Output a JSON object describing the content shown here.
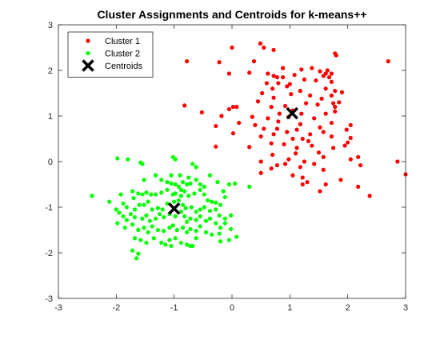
{
  "figure": {
    "title": "Cluster Assignments and Centroids for k-means++"
  },
  "chart_data": {
    "type": "scatter",
    "title": "Cluster Assignments and Centroids for k-means++",
    "xlabel": "",
    "ylabel": "",
    "xlim": [
      -3,
      3
    ],
    "ylim": [
      -3,
      3
    ],
    "xticks": [
      -3,
      -2,
      -1,
      0,
      1,
      2,
      3
    ],
    "yticks": [
      -3,
      -2,
      -1,
      0,
      1,
      2,
      3
    ],
    "grid": false,
    "box": true,
    "legend_position": "top-left",
    "series": [
      {
        "name": "Cluster 1",
        "color": "#ff0000",
        "marker": "dot",
        "points": [
          [
            0.49,
            2.59
          ],
          [
            0.55,
            2.5
          ],
          [
            0.72,
            2.45
          ],
          [
            1.78,
            2.37
          ],
          [
            1.8,
            2.33
          ],
          [
            2.7,
            2.2
          ],
          [
            -0.78,
            2.2
          ],
          [
            -0.22,
            2.18
          ],
          [
            0.38,
            2.2
          ],
          [
            0.0,
            2.5
          ],
          [
            0.88,
            2.05
          ],
          [
            1.2,
            2.02
          ],
          [
            1.38,
            2.05
          ],
          [
            1.65,
            2.0
          ],
          [
            1.52,
            1.98
          ],
          [
            1.62,
            1.93
          ],
          [
            1.72,
            1.93
          ],
          [
            1.58,
            1.88
          ],
          [
            0.3,
            1.95
          ],
          [
            0.62,
            1.93
          ],
          [
            0.72,
            1.88
          ],
          [
            0.78,
            1.85
          ],
          [
            0.88,
            1.85
          ],
          [
            1.08,
            1.9
          ],
          [
            1.25,
            1.8
          ],
          [
            1.45,
            1.78
          ],
          [
            1.68,
            1.85
          ],
          [
            -0.05,
            1.93
          ],
          [
            0.6,
            1.72
          ],
          [
            0.8,
            1.72
          ],
          [
            1.0,
            1.7
          ],
          [
            1.72,
            1.75
          ],
          [
            1.78,
            1.55
          ],
          [
            1.62,
            1.6
          ],
          [
            1.9,
            1.52
          ],
          [
            0.7,
            1.6
          ],
          [
            0.95,
            1.65
          ],
          [
            1.18,
            1.55
          ],
          [
            1.35,
            1.45
          ],
          [
            1.55,
            1.38
          ],
          [
            1.72,
            1.45
          ],
          [
            1.85,
            1.3
          ],
          [
            0.72,
            1.4
          ],
          [
            1.02,
            1.48
          ],
          [
            1.48,
            1.25
          ],
          [
            1.75,
            1.28
          ],
          [
            1.78,
            1.2
          ],
          [
            -0.82,
            1.23
          ],
          [
            -0.05,
            1.15
          ],
          [
            0.02,
            1.2
          ],
          [
            0.08,
            1.2
          ],
          [
            0.45,
            1.32
          ],
          [
            0.68,
            1.2
          ],
          [
            0.92,
            1.22
          ],
          [
            0.82,
            1.05
          ],
          [
            0.98,
            0.98
          ],
          [
            1.2,
            1.05
          ],
          [
            1.62,
            1.05
          ],
          [
            1.78,
            1.1
          ],
          [
            0.35,
            0.98
          ],
          [
            0.62,
            0.95
          ],
          [
            0.8,
            0.88
          ],
          [
            1.18,
            0.82
          ],
          [
            1.42,
            0.95
          ],
          [
            1.52,
            0.75
          ],
          [
            -0.52,
            1.08
          ],
          [
            -0.18,
            1.0
          ],
          [
            0.12,
            0.85
          ],
          [
            0.4,
            0.8
          ],
          [
            0.55,
            0.72
          ],
          [
            0.78,
            0.72
          ],
          [
            0.95,
            0.65
          ],
          [
            1.12,
            0.7
          ],
          [
            1.22,
            0.5
          ],
          [
            1.32,
            0.45
          ],
          [
            1.35,
            0.6
          ],
          [
            1.58,
            0.65
          ],
          [
            1.72,
            0.55
          ],
          [
            1.98,
            0.7
          ],
          [
            2.05,
            0.52
          ],
          [
            2.05,
            0.8
          ],
          [
            1.72,
            0.85
          ],
          [
            -0.28,
            0.78
          ],
          [
            0.02,
            0.62
          ],
          [
            0.5,
            0.55
          ],
          [
            0.72,
            0.6
          ],
          [
            1.05,
            0.5
          ],
          [
            1.38,
            0.35
          ],
          [
            1.75,
            0.3
          ],
          [
            2.0,
            0.42
          ],
          [
            1.95,
            0.35
          ],
          [
            0.68,
            0.4
          ],
          [
            0.9,
            0.38
          ],
          [
            1.12,
            0.3
          ],
          [
            0.3,
            0.32
          ],
          [
            0.7,
            0.15
          ],
          [
            0.98,
            0.05
          ],
          [
            1.1,
            0.18
          ],
          [
            1.5,
            0.2
          ],
          [
            1.58,
            0.1
          ],
          [
            -0.28,
            0.33
          ],
          [
            0.5,
            0.0
          ],
          [
            0.68,
            -0.15
          ],
          [
            0.78,
            -0.08
          ],
          [
            0.92,
            -0.05
          ],
          [
            1.18,
            -0.12
          ],
          [
            1.25,
            0.0
          ],
          [
            1.42,
            -0.05
          ],
          [
            1.58,
            -0.18
          ],
          [
            2.05,
            0.05
          ],
          [
            2.18,
            0.1
          ],
          [
            2.22,
            -0.08
          ],
          [
            1.05,
            -0.3
          ],
          [
            1.22,
            -0.35
          ],
          [
            1.3,
            -0.45
          ],
          [
            1.22,
            -0.5
          ],
          [
            0.5,
            -0.25
          ],
          [
            1.62,
            -0.5
          ],
          [
            2.18,
            -0.55
          ],
          [
            2.38,
            -0.75
          ],
          [
            1.52,
            -0.65
          ],
          [
            1.88,
            -0.4
          ],
          [
            2.86,
            0.0
          ],
          [
            3.0,
            -0.28
          ],
          [
            1.05,
            1.12
          ],
          [
            0.52,
            1.5
          ],
          [
            1.28,
            1.28
          ]
        ]
      },
      {
        "name": "Cluster 2",
        "color": "#00ff00",
        "marker": "dot",
        "points": [
          [
            -1.98,
            0.07
          ],
          [
            -1.8,
            0.05
          ],
          [
            -1.58,
            -0.02
          ],
          [
            -1.55,
            -0.05
          ],
          [
            -0.68,
            -0.05
          ],
          [
            -0.62,
            -0.12
          ],
          [
            -1.02,
            0.1
          ],
          [
            -0.98,
            0.05
          ],
          [
            -1.32,
            -0.3
          ],
          [
            -1.52,
            -0.4
          ],
          [
            -1.22,
            -0.4
          ],
          [
            -1.12,
            -0.45
          ],
          [
            -1.05,
            -0.48
          ],
          [
            -0.98,
            -0.5
          ],
          [
            -0.92,
            -0.55
          ],
          [
            -0.85,
            -0.45
          ],
          [
            -0.78,
            -0.5
          ],
          [
            -0.72,
            -0.48
          ],
          [
            -0.62,
            -0.4
          ],
          [
            -0.55,
            -0.5
          ],
          [
            -0.48,
            -0.55
          ],
          [
            -0.25,
            -0.45
          ],
          [
            -0.05,
            -0.5
          ],
          [
            0.05,
            -0.48
          ],
          [
            0.3,
            -0.55
          ],
          [
            -0.38,
            -0.3
          ],
          [
            -1.72,
            -0.65
          ],
          [
            -1.62,
            -0.7
          ],
          [
            -1.55,
            -0.72
          ],
          [
            -1.48,
            -0.68
          ],
          [
            -1.4,
            -0.72
          ],
          [
            -1.32,
            -0.72
          ],
          [
            -1.22,
            -0.68
          ],
          [
            -1.12,
            -0.62
          ],
          [
            -1.02,
            -0.72
          ],
          [
            -0.98,
            -0.7
          ],
          [
            -0.88,
            -0.62
          ],
          [
            -0.82,
            -0.65
          ],
          [
            -0.75,
            -0.75
          ],
          [
            -0.65,
            -0.7
          ],
          [
            -0.55,
            -0.62
          ],
          [
            -0.48,
            -0.72
          ],
          [
            -0.42,
            -0.85
          ],
          [
            -0.35,
            -0.88
          ],
          [
            -0.28,
            -0.9
          ],
          [
            -0.2,
            -0.95
          ],
          [
            -0.12,
            -0.78
          ],
          [
            -1.92,
            -0.72
          ],
          [
            -2.42,
            -0.75
          ],
          [
            -2.12,
            -0.88
          ],
          [
            -1.88,
            -0.92
          ],
          [
            -1.82,
            -1.0
          ],
          [
            -1.68,
            -1.05
          ],
          [
            -1.6,
            -0.95
          ],
          [
            -1.52,
            -0.95
          ],
          [
            -1.45,
            -0.88
          ],
          [
            -1.38,
            -1.05
          ],
          [
            -1.28,
            -1.02
          ],
          [
            -1.2,
            -1.05
          ],
          [
            -1.12,
            -0.92
          ],
          [
            -1.0,
            -0.88
          ],
          [
            -0.92,
            -0.85
          ],
          [
            -0.85,
            -0.95
          ],
          [
            -0.8,
            -1.02
          ],
          [
            -0.7,
            -1.0
          ],
          [
            -0.62,
            -1.1
          ],
          [
            -0.55,
            -1.05
          ],
          [
            -0.48,
            -1.0
          ],
          [
            -0.38,
            -1.08
          ],
          [
            -0.28,
            -1.05
          ],
          [
            -0.22,
            -1.18
          ],
          [
            -0.12,
            -1.25
          ],
          [
            -0.02,
            -1.18
          ],
          [
            -2.0,
            -1.05
          ],
          [
            -1.95,
            -1.12
          ],
          [
            -1.88,
            -1.2
          ],
          [
            -1.82,
            -1.28
          ],
          [
            -1.75,
            -1.15
          ],
          [
            -1.68,
            -1.22
          ],
          [
            -1.55,
            -1.25
          ],
          [
            -1.48,
            -1.18
          ],
          [
            -1.42,
            -1.3
          ],
          [
            -1.32,
            -1.25
          ],
          [
            -1.25,
            -1.15
          ],
          [
            -1.18,
            -1.22
          ],
          [
            -1.08,
            -1.15
          ],
          [
            -0.98,
            -1.2
          ],
          [
            -0.88,
            -1.1
          ],
          [
            -0.82,
            -1.2
          ],
          [
            -0.78,
            -1.32
          ],
          [
            -0.72,
            -1.25
          ],
          [
            -0.62,
            -1.28
          ],
          [
            -0.55,
            -1.2
          ],
          [
            -0.45,
            -1.3
          ],
          [
            -0.38,
            -1.25
          ],
          [
            -0.28,
            -1.35
          ],
          [
            -0.2,
            -1.45
          ],
          [
            -0.12,
            -1.35
          ],
          [
            -0.02,
            -1.48
          ],
          [
            -1.98,
            -1.35
          ],
          [
            -1.85,
            -1.45
          ],
          [
            -1.72,
            -1.38
          ],
          [
            -1.62,
            -1.5
          ],
          [
            -1.52,
            -1.45
          ],
          [
            -1.45,
            -1.55
          ],
          [
            -1.38,
            -1.42
          ],
          [
            -1.28,
            -1.5
          ],
          [
            -1.18,
            -1.52
          ],
          [
            -1.08,
            -1.45
          ],
          [
            -1.02,
            -1.4
          ],
          [
            -0.95,
            -1.5
          ],
          [
            -0.85,
            -1.45
          ],
          [
            -0.78,
            -1.55
          ],
          [
            -0.72,
            -1.48
          ],
          [
            -0.62,
            -1.52
          ],
          [
            -0.55,
            -1.42
          ],
          [
            -0.45,
            -1.55
          ],
          [
            -0.35,
            -1.6
          ],
          [
            -0.22,
            -1.58
          ],
          [
            -0.05,
            -1.72
          ],
          [
            0.08,
            -1.65
          ],
          [
            -1.68,
            -1.68
          ],
          [
            -1.58,
            -1.72
          ],
          [
            -1.48,
            -1.78
          ],
          [
            -1.35,
            -1.68
          ],
          [
            -1.22,
            -1.78
          ],
          [
            -1.08,
            -1.72
          ],
          [
            -0.98,
            -1.68
          ],
          [
            -0.88,
            -1.78
          ],
          [
            -0.78,
            -1.82
          ],
          [
            -0.72,
            -1.85
          ],
          [
            -0.68,
            -1.85
          ],
          [
            -1.72,
            -1.95
          ],
          [
            -1.62,
            -2.02
          ],
          [
            -1.65,
            -2.12
          ],
          [
            -1.05,
            -1.85
          ],
          [
            -1.15,
            -1.82
          ],
          [
            -0.62,
            -1.68
          ],
          [
            -0.2,
            -1.75
          ],
          [
            -1.7,
            -0.8
          ],
          [
            -1.05,
            -0.3
          ],
          [
            -0.9,
            -0.3
          ],
          [
            -0.88,
            -0.75
          ],
          [
            -0.75,
            -0.35
          ],
          [
            -0.15,
            -0.65
          ]
        ]
      },
      {
        "name": "Centroids",
        "color": "#000000",
        "marker": "x",
        "points": [
          [
            1.04,
            1.06
          ],
          [
            -1.0,
            -1.03
          ]
        ]
      }
    ]
  }
}
